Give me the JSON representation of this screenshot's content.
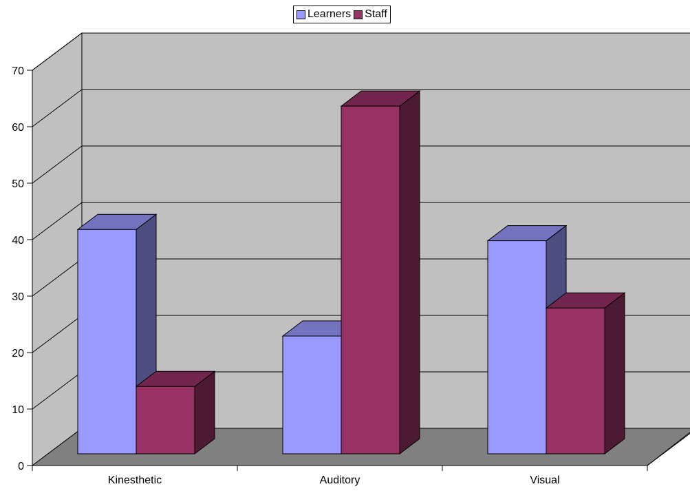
{
  "chart_data": {
    "type": "bar",
    "style": "3d-clustered-column",
    "categories": [
      "Kinesthetic",
      "Auditory",
      "Visual"
    ],
    "series": [
      {
        "name": "Learners",
        "values": [
          40,
          21,
          38
        ],
        "color": "#9999ff"
      },
      {
        "name": "Staff",
        "values": [
          12,
          62,
          26
        ],
        "color": "#993366"
      }
    ],
    "ylim": [
      0,
      70
    ],
    "yticks": [
      "0",
      "10",
      "20",
      "30",
      "40",
      "50",
      "60",
      "70"
    ],
    "grid": true,
    "legend": "top-center",
    "wall_color": "#c0c0c0",
    "floor_color": "#808080"
  }
}
